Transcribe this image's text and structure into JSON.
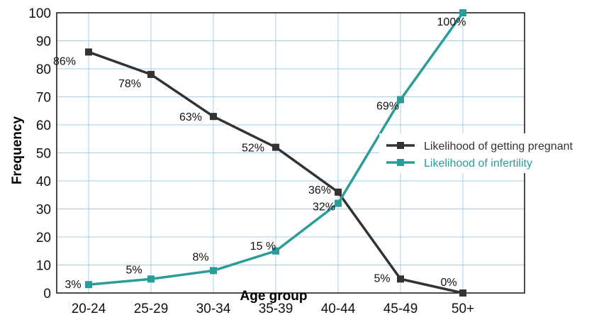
{
  "chart_data": {
    "type": "line",
    "categories": [
      "20-24",
      "25-29",
      "30-34",
      "35-39",
      "40-44",
      "45-49",
      "50+"
    ],
    "series": [
      {
        "name": "Likelihood of getting pregnant",
        "values": [
          86,
          78,
          63,
          52,
          36,
          5,
          0
        ],
        "labels": [
          "86%",
          "78%",
          "63%",
          "52%",
          "36%",
          "5%",
          "0%"
        ],
        "color": "#333333"
      },
      {
        "name": "Likelihood of infertility",
        "values": [
          3,
          5,
          8,
          15,
          32,
          69,
          100
        ],
        "labels": [
          "3%",
          "5%",
          "8%",
          "15 %",
          "32%",
          "69%",
          "100%"
        ],
        "color": "#2a9d9a"
      }
    ],
    "xlabel": "Age group",
    "ylabel": "Frequency",
    "ylim": [
      0,
      100
    ],
    "yticks": [
      "0",
      "10",
      "20",
      "30",
      "40",
      "50",
      "60",
      "70",
      "80",
      "90",
      "100"
    ],
    "grid": true,
    "legend": "right"
  }
}
